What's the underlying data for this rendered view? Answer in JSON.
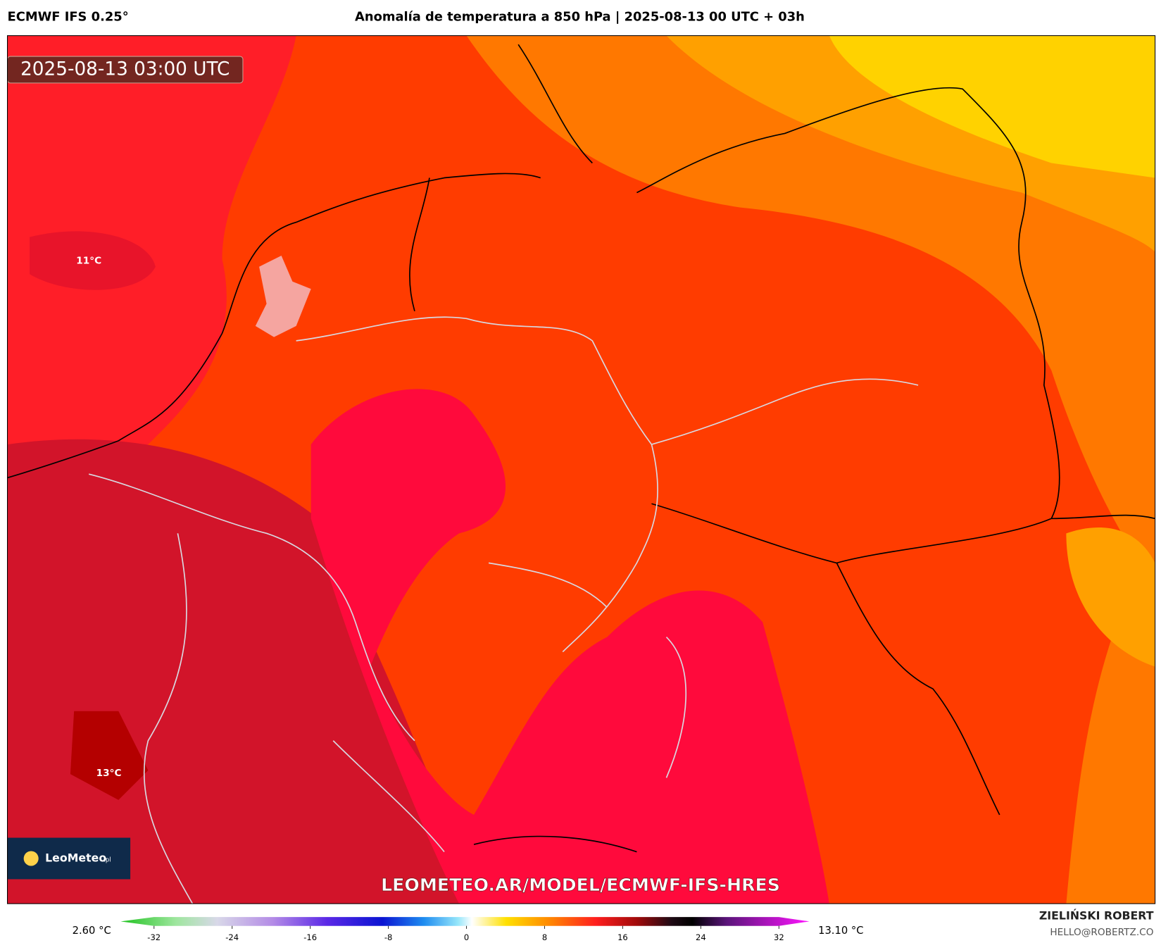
{
  "header": {
    "model": "ECMWF IFS 0.25°",
    "title": "Anomalía de temperatura a 850 hPa | 2025-08-13 00 UTC + 03h"
  },
  "map": {
    "timestamp": "2025-08-13 03:00 UTC",
    "contour_labels": [
      "11°C",
      "13°C"
    ],
    "logo": "LeoMeteo",
    "logo_suffix": ".pl",
    "url": "LEOMETEO.AR/MODEL/ECMWF-IFS-HRES"
  },
  "colorbar": {
    "min_label": "2.60 °C",
    "max_label": "13.10 °C",
    "ticks": [
      -32,
      -24,
      -16,
      -8,
      0,
      8,
      16,
      24,
      32
    ]
  },
  "footer": {
    "author": "ZIELIŃSKI ROBERT",
    "email": "HELLO@ROBERTZ.CO"
  }
}
